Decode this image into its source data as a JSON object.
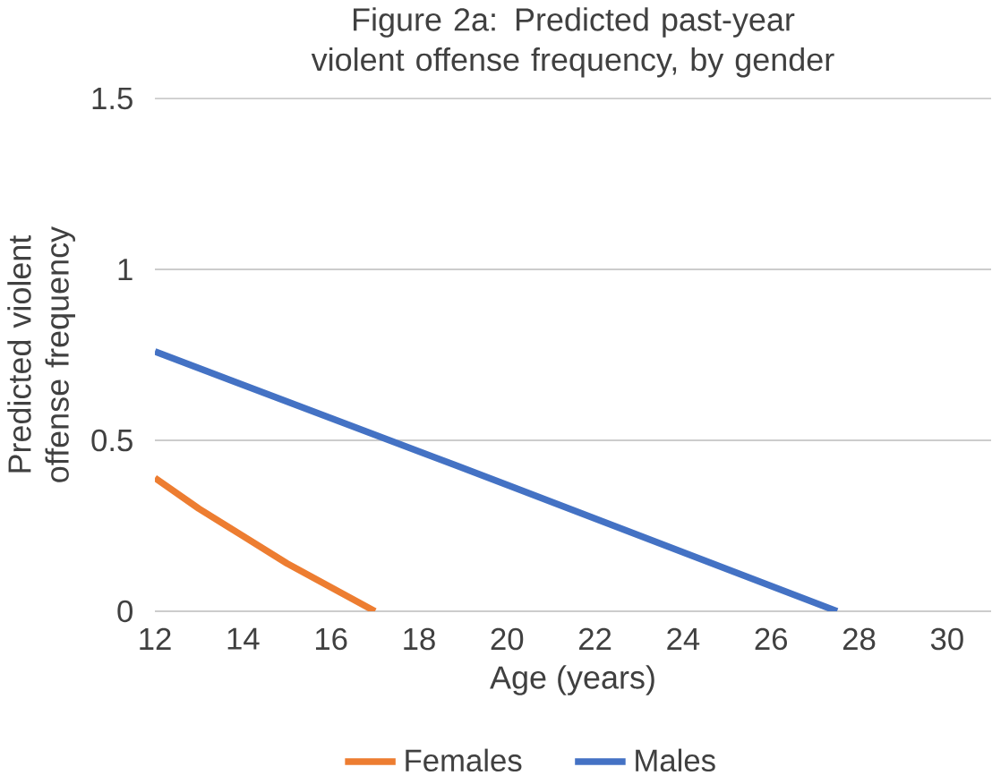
{
  "chart_data": {
    "type": "line",
    "title": "Figure 2a: Predicted past-year violent offense frequency, by gender",
    "xlabel": "Age (years)",
    "ylabel": "Predicted violent offense frequency",
    "series": [
      {
        "name": "Females",
        "color": "#ed7d31",
        "x": [
          12,
          13,
          14,
          15,
          16,
          17
        ],
        "values": [
          0.39,
          0.3,
          0.22,
          0.14,
          0.07,
          0
        ]
      },
      {
        "name": "Males",
        "color": "#4472c4",
        "x": [
          12,
          20,
          27.5
        ],
        "values": [
          0.76,
          0.37,
          0
        ]
      }
    ],
    "xlim": [
      12,
      31
    ],
    "ylim": [
      0,
      1.5
    ],
    "xticks": [
      12,
      14,
      16,
      18,
      20,
      22,
      24,
      26,
      28,
      30
    ],
    "yticks": [
      0,
      0.5,
      1,
      1.5
    ],
    "grid": "y",
    "legend": "bottom",
    "marker": "none",
    "line_style": "solid"
  }
}
